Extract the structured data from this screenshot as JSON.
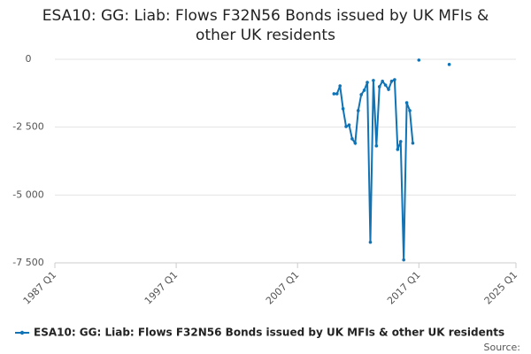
{
  "chart_data": {
    "type": "line",
    "title": "ESA10: GG: Liab: Flows F32N56 Bonds issued by UK MFIs & other UK residents",
    "x": [
      "2010 Q1",
      "2010 Q2",
      "2010 Q3",
      "2010 Q4",
      "2011 Q1",
      "2011 Q2",
      "2011 Q3",
      "2011 Q4",
      "2012 Q1",
      "2012 Q2",
      "2012 Q3",
      "2012 Q4",
      "2013 Q1",
      "2013 Q2",
      "2013 Q3",
      "2013 Q4",
      "2014 Q1",
      "2014 Q2",
      "2014 Q3",
      "2014 Q4",
      "2015 Q1",
      "2015 Q2",
      "2015 Q3",
      "2015 Q4",
      "2016 Q1",
      "2016 Q2",
      "2016 Q3",
      "2016 Q4",
      "2017 Q1",
      "2017 Q2",
      "2017 Q3",
      "2017 Q4",
      "2018 Q1",
      "2018 Q2",
      "2018 Q3",
      "2018 Q4",
      "2019 Q1",
      "2019 Q2",
      "2019 Q3"
    ],
    "series": [
      {
        "name": "ESA10: GG: Liab: Flows F32N56 Bonds issued by UK MFIs & other UK residents",
        "color": "#0f73b5",
        "values": [
          -1270,
          -1270,
          -980,
          -1820,
          -2480,
          -2420,
          -2930,
          -3090,
          -1890,
          -1300,
          -1140,
          -850,
          -6740,
          -780,
          -3190,
          -1010,
          -810,
          -950,
          -1110,
          -810,
          -750,
          -3320,
          -3030,
          -7390,
          -1600,
          -1890,
          -3090,
          null,
          -30,
          null,
          null,
          null,
          null,
          null,
          null,
          null,
          null,
          null,
          -190
        ]
      }
    ],
    "xlim": [
      "1987 Q1",
      "2025 Q1"
    ],
    "xticks": [
      "1987 Q1",
      "1997 Q1",
      "2007 Q1",
      "2017 Q1",
      "2025 Q1"
    ],
    "ylim": [
      -7500,
      0
    ],
    "yticks": [
      {
        "value": -7500,
        "label": "-7 500"
      },
      {
        "value": -5000,
        "label": "-5 000"
      },
      {
        "value": -2500,
        "label": "-2 500"
      },
      0
    ],
    "grid": true,
    "source": "Source:"
  }
}
